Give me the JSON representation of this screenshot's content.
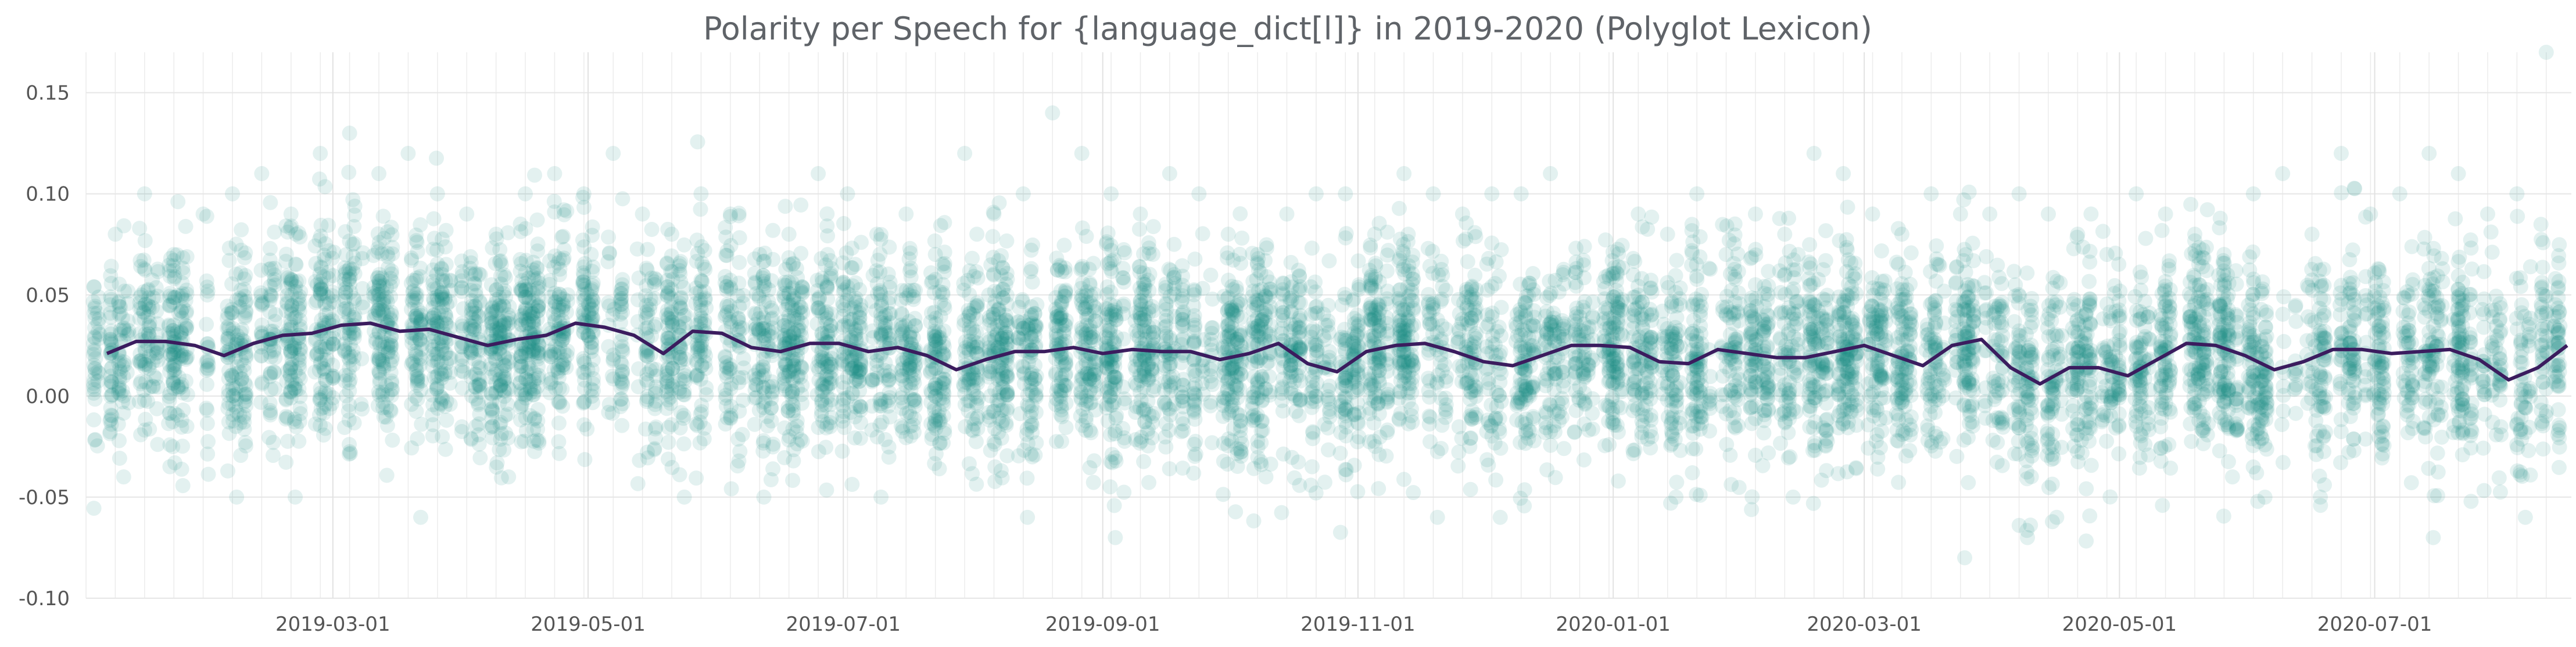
{
  "chart_data": {
    "type": "scatter",
    "title": "Polarity per Speech for {language_dict[l]} in 2019-2020 (Polyglot Lexicon)",
    "xlabel": "",
    "ylabel": "",
    "x_range": [
      "2019-01-01",
      "2020-08-17"
    ],
    "ylim": [
      -0.1,
      0.17
    ],
    "y_ticks": [
      {
        "value": 0.15,
        "label": "0.15"
      },
      {
        "value": 0.1,
        "label": "0.10"
      },
      {
        "value": 0.05,
        "label": "0.05"
      },
      {
        "value": 0.0,
        "label": "0.00"
      },
      {
        "value": -0.05,
        "label": "-0.05"
      },
      {
        "value": -0.1,
        "label": "-0.10"
      }
    ],
    "x_ticks": [
      {
        "value": "2019-03-01",
        "label": "2019-03-01"
      },
      {
        "value": "2019-05-01",
        "label": "2019-05-01"
      },
      {
        "value": "2019-07-01",
        "label": "2019-07-01"
      },
      {
        "value": "2019-09-01",
        "label": "2019-09-01"
      },
      {
        "value": "2019-11-01",
        "label": "2019-11-01"
      },
      {
        "value": "2020-01-01",
        "label": "2020-01-01"
      },
      {
        "value": "2020-03-01",
        "label": "2020-03-01"
      },
      {
        "value": "2020-05-01",
        "label": "2020-05-01"
      },
      {
        "value": "2020-07-01",
        "label": "2020-07-01"
      }
    ],
    "grid": true,
    "colors": {
      "points": "#1a8a87",
      "line": "#3b1c5e"
    },
    "point_opacity": 0.12,
    "series": [
      {
        "type": "scatter",
        "x": [
          "2019-01-08",
          "2019-01-15",
          "2019-01-22",
          "2019-01-29",
          "2019-02-05",
          "2019-02-12",
          "2019-02-19",
          "2019-02-26",
          "2019-03-05",
          "2019-03-12",
          "2019-03-19",
          "2019-03-26",
          "2019-04-02",
          "2019-04-09",
          "2019-04-16",
          "2019-04-23",
          "2019-04-30",
          "2019-05-07",
          "2019-05-14",
          "2019-05-21",
          "2019-05-28",
          "2019-06-04",
          "2019-06-11",
          "2019-06-18",
          "2019-06-25",
          "2019-07-02",
          "2019-07-09",
          "2019-07-16",
          "2019-07-23",
          "2019-07-30",
          "2019-08-06",
          "2019-08-13",
          "2019-08-20",
          "2019-08-27",
          "2019-09-03",
          "2019-09-10",
          "2019-09-17",
          "2019-09-24",
          "2019-10-01",
          "2019-10-08",
          "2019-10-15",
          "2019-10-22",
          "2019-10-29",
          "2019-11-05",
          "2019-11-12",
          "2019-11-19",
          "2019-11-26",
          "2019-12-03",
          "2019-12-10",
          "2019-12-17",
          "2020-01-07",
          "2020-01-14",
          "2020-01-21",
          "2020-01-28",
          "2020-02-04",
          "2020-02-11",
          "2020-02-18",
          "2020-02-25",
          "2020-03-03",
          "2020-03-10",
          "2020-03-17",
          "2020-03-24",
          "2020-03-31",
          "2020-04-07",
          "2020-04-14",
          "2020-04-21",
          "2020-04-28",
          "2020-05-05",
          "2020-05-12",
          "2020-05-19",
          "2020-05-26",
          "2020-06-02",
          "2020-06-09",
          "2020-06-16",
          "2020-06-23",
          "2020-06-30",
          "2020-07-07",
          "2020-07-14",
          "2020-07-21",
          "2020-07-28",
          "2020-08-04",
          "2020-08-11",
          "2019-02-06",
          "2019-03-22",
          "2019-06-12",
          "2019-09-04",
          "2019-12-05",
          "2020-03-25",
          "2020-04-09",
          "2020-07-15",
          "2019-01-10",
          "2019-02-20",
          "2019-04-12",
          "2019-05-24",
          "2019-07-10",
          "2019-08-14",
          "2019-10-10",
          "2019-11-20",
          "2020-01-16",
          "2020-02-13",
          "2020-04-16",
          "2020-05-28",
          "2020-06-18",
          "2020-08-06"
        ],
        "y": [
          0.08,
          0.1,
          0.07,
          0.09,
          0.1,
          0.11,
          0.09,
          0.12,
          0.13,
          0.11,
          0.12,
          0.1,
          0.09,
          0.08,
          0.1,
          0.11,
          0.1,
          0.12,
          0.09,
          0.08,
          0.1,
          0.09,
          0.07,
          0.08,
          0.11,
          0.1,
          0.08,
          0.09,
          0.07,
          0.12,
          0.09,
          0.1,
          0.14,
          0.12,
          0.1,
          0.09,
          0.11,
          0.1,
          0.08,
          0.07,
          0.09,
          0.1,
          0.1,
          0.08,
          0.11,
          0.1,
          0.09,
          0.1,
          0.1,
          0.11,
          0.09,
          0.08,
          0.1,
          0.07,
          0.09,
          0.08,
          0.12,
          0.11,
          0.09,
          0.08,
          0.1,
          0.09,
          0.09,
          0.1,
          0.09,
          0.08,
          0.07,
          0.1,
          0.09,
          0.08,
          0.07,
          0.1,
          0.11,
          0.08,
          0.12,
          0.09,
          0.1,
          0.12,
          0.11,
          0.09,
          0.1,
          0.17,
          -0.05,
          -0.06,
          -0.05,
          -0.07,
          -0.06,
          -0.08,
          -0.07,
          -0.07,
          -0.04,
          -0.05,
          -0.04,
          -0.05,
          -0.05,
          -0.06,
          -0.04,
          -0.06,
          -0.05,
          -0.05,
          -0.06,
          -0.04,
          -0.05,
          -0.06
        ]
      },
      {
        "type": "line",
        "x": [
          "2019-01-06",
          "2019-01-13",
          "2019-01-20",
          "2019-01-27",
          "2019-02-03",
          "2019-02-10",
          "2019-02-17",
          "2019-02-24",
          "2019-03-03",
          "2019-03-10",
          "2019-03-17",
          "2019-03-24",
          "2019-03-31",
          "2019-04-07",
          "2019-04-14",
          "2019-04-21",
          "2019-04-28",
          "2019-05-05",
          "2019-05-12",
          "2019-05-19",
          "2019-05-26",
          "2019-06-02",
          "2019-06-09",
          "2019-06-16",
          "2019-06-23",
          "2019-06-30",
          "2019-07-07",
          "2019-07-14",
          "2019-07-21",
          "2019-07-28",
          "2019-08-04",
          "2019-08-11",
          "2019-08-18",
          "2019-08-25",
          "2019-09-01",
          "2019-09-08",
          "2019-09-15",
          "2019-09-22",
          "2019-09-29",
          "2019-10-06",
          "2019-10-13",
          "2019-10-20",
          "2019-10-27",
          "2019-11-03",
          "2019-11-10",
          "2019-11-17",
          "2019-11-24",
          "2019-12-01",
          "2019-12-08",
          "2019-12-15",
          "2019-12-22",
          "2019-12-29",
          "2020-01-05",
          "2020-01-12",
          "2020-01-19",
          "2020-01-26",
          "2020-02-02",
          "2020-02-09",
          "2020-02-16",
          "2020-02-23",
          "2020-03-01",
          "2020-03-08",
          "2020-03-15",
          "2020-03-22",
          "2020-03-29",
          "2020-04-05",
          "2020-04-12",
          "2020-04-19",
          "2020-04-26",
          "2020-05-03",
          "2020-05-10",
          "2020-05-17",
          "2020-05-24",
          "2020-05-31",
          "2020-06-07",
          "2020-06-14",
          "2020-06-21",
          "2020-06-28",
          "2020-07-05",
          "2020-07-12",
          "2020-07-19",
          "2020-07-26",
          "2020-08-02",
          "2020-08-09",
          "2020-08-16"
        ],
        "y": [
          0.021,
          0.027,
          0.027,
          0.025,
          0.02,
          0.026,
          0.03,
          0.031,
          0.035,
          0.036,
          0.032,
          0.033,
          0.029,
          0.025,
          0.028,
          0.03,
          0.036,
          0.034,
          0.03,
          0.021,
          0.032,
          0.031,
          0.024,
          0.022,
          0.026,
          0.026,
          0.022,
          0.024,
          0.02,
          0.013,
          0.018,
          0.022,
          0.022,
          0.024,
          0.021,
          0.023,
          0.022,
          0.022,
          0.018,
          0.021,
          0.026,
          0.016,
          0.012,
          0.022,
          0.025,
          0.026,
          0.022,
          0.017,
          0.015,
          0.02,
          0.025,
          0.025,
          0.024,
          0.017,
          0.016,
          0.023,
          0.021,
          0.019,
          0.019,
          0.022,
          0.025,
          0.02,
          0.015,
          0.025,
          0.028,
          0.014,
          0.006,
          0.014,
          0.014,
          0.01,
          0.018,
          0.026,
          0.025,
          0.02,
          0.013,
          0.017,
          0.023,
          0.023,
          0.021,
          0.022,
          0.023,
          0.018,
          0.008,
          0.014,
          0.025
        ]
      }
    ]
  }
}
